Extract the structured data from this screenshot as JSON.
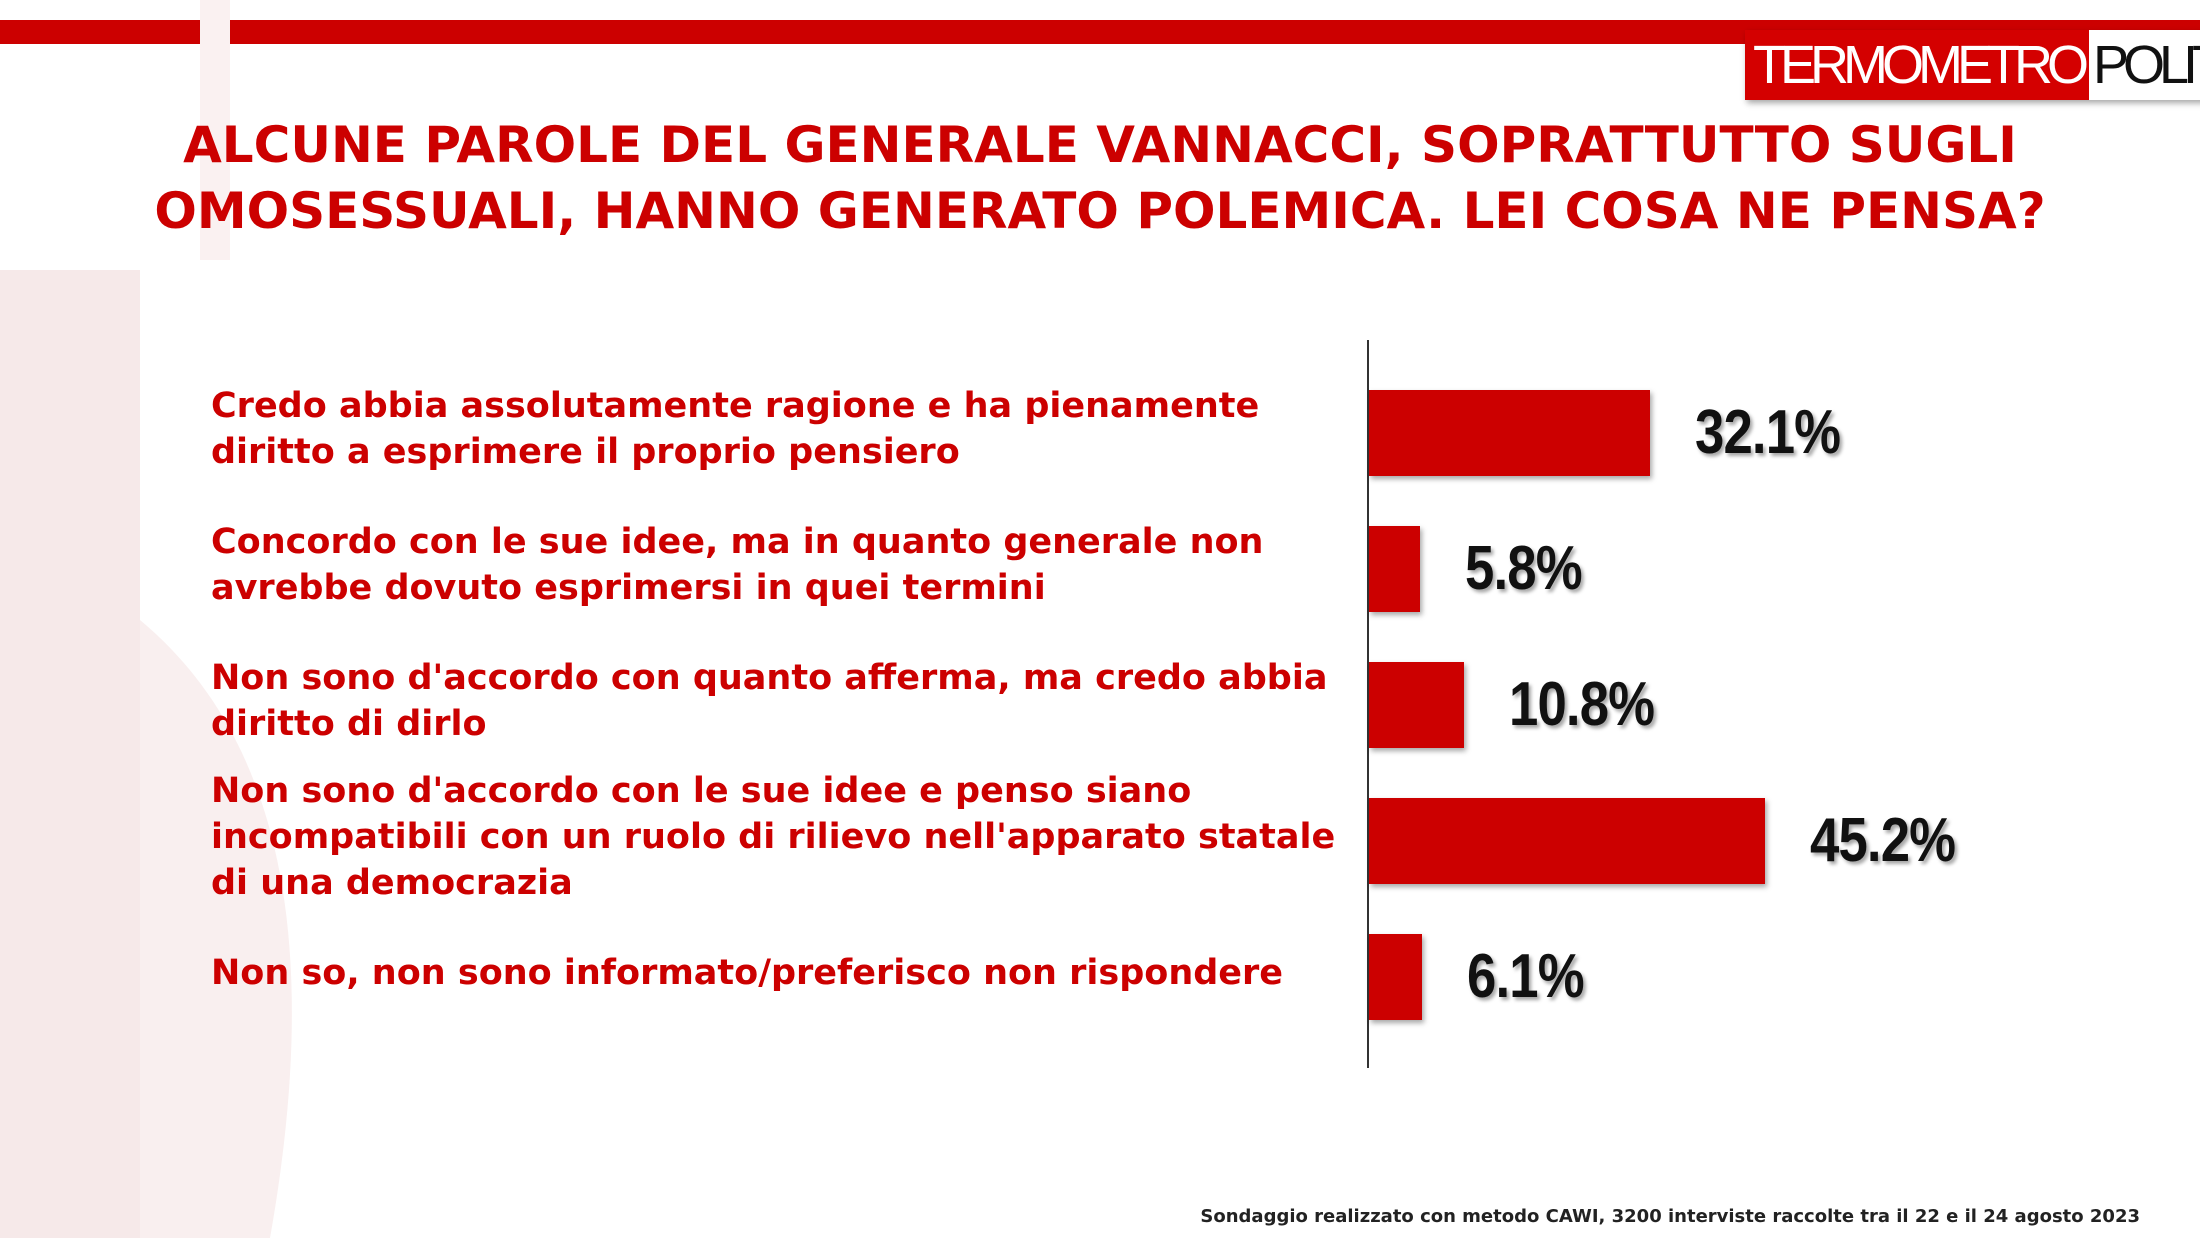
{
  "brand": {
    "logo_part1": "TERMOMETRO",
    "logo_part2": "POLITICO"
  },
  "colors": {
    "accent": "#cc0000",
    "text_dark": "#111111"
  },
  "chart_data": {
    "type": "bar",
    "orientation": "horizontal",
    "title": "ALCUNE PAROLE DEL GENERALE VANNACCI, SOPRATTUTTO SUGLI OMOSESSUALI, HANNO GENERATO POLEMICA. LEI COSA NE PENSA?",
    "categories": [
      "Credo abbia assolutamente ragione e ha pienamente diritto a esprimere il proprio pensiero",
      "Concordo con le sue idee, ma in quanto generale non avrebbe dovuto esprimersi in quei termini",
      "Non sono d'accordo con quanto afferma, ma credo abbia diritto di dirlo",
      "Non sono d'accordo con le sue idee e penso siano incompatibili con un ruolo di rilievo nell'apparato statale di una democrazia",
      "Non so, non sono informato/preferisco non rispondere"
    ],
    "values": [
      32.1,
      5.8,
      10.8,
      45.2,
      6.1
    ],
    "value_labels": [
      "32.1%",
      "5.8%",
      "10.8%",
      "45.2%",
      "6.1%"
    ],
    "unit": "%",
    "xlim": [
      0,
      100
    ],
    "grid": false,
    "legend": "none",
    "bar_color": "#cc0000"
  },
  "footnote": "Sondaggio realizzato con metodo CAWI, 3200 interviste raccolte tra il 22 e il 24 agosto 2023"
}
